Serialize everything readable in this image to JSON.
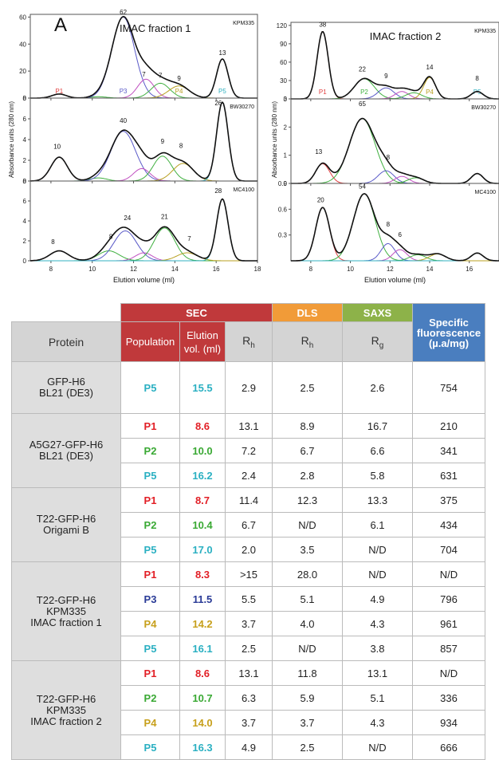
{
  "panelA": {
    "letter": "A",
    "xlabel": "Elution volume (ml)",
    "ylabel": "Absorbance units (280 nm)",
    "left_title": "IMAC fraction 1",
    "right_title": "IMAC fraction 2"
  },
  "chart_data": [
    {
      "type": "line",
      "title": "IMAC fraction 1",
      "strain": "KPM335",
      "xlim": [
        7,
        18
      ],
      "ylim": [
        0,
        62
      ],
      "yticks": [
        0,
        20,
        40,
        60
      ],
      "xticks": [
        8,
        10,
        12,
        14,
        16,
        18
      ],
      "peaks": [
        {
          "label": "P1",
          "x": 8.4,
          "y": 3,
          "color": "#e04040",
          "w": 0.35
        },
        {
          "label": "",
          "x": 10.3,
          "y": 1,
          "color": "#40b040",
          "w": 0.4
        },
        {
          "label": "P3",
          "x": 11.5,
          "y": 60,
          "color": "#5a5ac8",
          "w": 0.55
        },
        {
          "label": "",
          "x": 12.6,
          "y": 14,
          "color": "#c050c0",
          "w": 0.4
        },
        {
          "label": "",
          "x": 13.3,
          "y": 11,
          "color": "#40b040",
          "w": 0.45
        },
        {
          "label": "P4",
          "x": 14.2,
          "y": 9,
          "color": "#b8a020",
          "w": 0.5
        },
        {
          "label": "P5",
          "x": 16.3,
          "y": 29,
          "color": "#30b0c0",
          "w": 0.28
        }
      ],
      "peak_labels": [
        {
          "text": "62",
          "x": 11.5,
          "y": 62
        },
        {
          "text": "7",
          "x": 12.5,
          "y": 16
        },
        {
          "text": "7",
          "x": 13.3,
          "y": 15
        },
        {
          "text": "9",
          "x": 14.2,
          "y": 13
        },
        {
          "text": "13",
          "x": 16.3,
          "y": 32
        }
      ]
    },
    {
      "type": "line",
      "strain": "BW30270",
      "xlim": [
        7,
        18
      ],
      "ylim": [
        0,
        8
      ],
      "yticks": [
        0,
        2,
        4,
        6,
        8
      ],
      "xticks": [
        8,
        10,
        12,
        14,
        16,
        18
      ],
      "peaks": [
        {
          "label": "",
          "x": 8.4,
          "y": 2.3,
          "color": "#e04040",
          "w": 0.4
        },
        {
          "label": "",
          "x": 10.3,
          "y": 0.3,
          "color": "#40b040",
          "w": 0.4
        },
        {
          "label": "",
          "x": 11.5,
          "y": 4.8,
          "color": "#5a5ac8",
          "w": 0.6
        },
        {
          "label": "",
          "x": 12.4,
          "y": 1.2,
          "color": "#c050c0",
          "w": 0.4
        },
        {
          "label": "",
          "x": 13.4,
          "y": 2.4,
          "color": "#40b040",
          "w": 0.45
        },
        {
          "label": "",
          "x": 14.4,
          "y": 1.7,
          "color": "#b8a020",
          "w": 0.5
        },
        {
          "label": "",
          "x": 16.3,
          "y": 7.6,
          "color": "#30b0c0",
          "w": 0.28
        }
      ],
      "peak_labels": [
        {
          "text": "10",
          "x": 8.3,
          "y": 3.1
        },
        {
          "text": "40",
          "x": 11.5,
          "y": 5.6
        },
        {
          "text": "9",
          "x": 13.4,
          "y": 3.6
        },
        {
          "text": "8",
          "x": 14.3,
          "y": 3.2
        },
        {
          "text": "26",
          "x": 16.1,
          "y": 7.3
        }
      ]
    },
    {
      "type": "line",
      "strain": "MC4100",
      "xlim": [
        7,
        18
      ],
      "ylim": [
        0,
        8
      ],
      "yticks": [
        0,
        2,
        4,
        6,
        8
      ],
      "xticks": [
        8,
        10,
        12,
        14,
        16,
        18
      ],
      "peaks": [
        {
          "label": "",
          "x": 8.4,
          "y": 1.0,
          "color": "#e04040",
          "w": 0.45
        },
        {
          "label": "",
          "x": 10.8,
          "y": 1.0,
          "color": "#40b040",
          "w": 0.5
        },
        {
          "label": "",
          "x": 11.6,
          "y": 3.0,
          "color": "#5a5ac8",
          "w": 0.55
        },
        {
          "label": "",
          "x": 12.5,
          "y": 0.8,
          "color": "#c050c0",
          "w": 0.4
        },
        {
          "label": "",
          "x": 13.5,
          "y": 3.3,
          "color": "#40b040",
          "w": 0.5
        },
        {
          "label": "",
          "x": 14.6,
          "y": 0.8,
          "color": "#b8a020",
          "w": 0.5
        },
        {
          "label": "",
          "x": 16.3,
          "y": 6.2,
          "color": "#30b0c0",
          "w": 0.28
        }
      ],
      "peak_labels": [
        {
          "text": "8",
          "x": 8.1,
          "y": 1.7
        },
        {
          "text": "8",
          "x": 10.9,
          "y": 2.2
        },
        {
          "text": "24",
          "x": 11.7,
          "y": 4.1
        },
        {
          "text": "21",
          "x": 13.5,
          "y": 4.2
        },
        {
          "text": "7",
          "x": 14.7,
          "y": 2.0
        },
        {
          "text": "28",
          "x": 16.1,
          "y": 6.8
        }
      ],
      "xlabel": "Elution volume (ml)"
    },
    {
      "type": "line",
      "title": "IMAC fraction 2",
      "strain": "KPM335",
      "xlim": [
        7,
        17.5
      ],
      "ylim": [
        0,
        125
      ],
      "yticks": [
        0,
        30,
        60,
        90,
        120
      ],
      "xticks": [
        8,
        10,
        12,
        14,
        16
      ],
      "peaks": [
        {
          "label": "P1",
          "x": 8.6,
          "y": 110,
          "color": "#e04040",
          "w": 0.28
        },
        {
          "label": "P2",
          "x": 10.7,
          "y": 33,
          "color": "#40b040",
          "w": 0.5
        },
        {
          "label": "",
          "x": 11.8,
          "y": 18,
          "color": "#5a5ac8",
          "w": 0.4
        },
        {
          "label": "",
          "x": 12.6,
          "y": 12,
          "color": "#c050c0",
          "w": 0.35
        },
        {
          "label": "",
          "x": 13.2,
          "y": 10,
          "color": "#40b040",
          "w": 0.4
        },
        {
          "label": "P4",
          "x": 14.0,
          "y": 35,
          "color": "#b8a020",
          "w": 0.3
        },
        {
          "label": "P5",
          "x": 16.4,
          "y": 12,
          "color": "#30b0c0",
          "w": 0.3
        }
      ],
      "peak_labels": [
        {
          "text": "38",
          "x": 8.6,
          "y": 118
        },
        {
          "text": "22",
          "x": 10.6,
          "y": 45
        },
        {
          "text": "9",
          "x": 11.8,
          "y": 34
        },
        {
          "text": "14",
          "x": 14.0,
          "y": 48
        },
        {
          "text": "8",
          "x": 16.4,
          "y": 30
        }
      ]
    },
    {
      "type": "line",
      "strain": "BW30270",
      "xlim": [
        7,
        17.5
      ],
      "ylim": [
        0,
        3
      ],
      "yticks": [
        0,
        1,
        2,
        3
      ],
      "xticks": [
        8,
        10,
        12,
        14,
        16
      ],
      "peaks": [
        {
          "label": "",
          "x": 8.6,
          "y": 0.7,
          "color": "#e04040",
          "w": 0.35
        },
        {
          "label": "",
          "x": 10.6,
          "y": 2.3,
          "color": "#40b040",
          "w": 0.65
        },
        {
          "label": "",
          "x": 11.8,
          "y": 0.45,
          "color": "#5a5ac8",
          "w": 0.4
        },
        {
          "label": "",
          "x": 12.6,
          "y": 0.25,
          "color": "#c050c0",
          "w": 0.35
        },
        {
          "label": "",
          "x": 13.3,
          "y": 0.2,
          "color": "#40b040",
          "w": 0.4
        },
        {
          "label": "",
          "x": 16.4,
          "y": 0.35,
          "color": "#30b0c0",
          "w": 0.3
        }
      ],
      "peak_labels": [
        {
          "text": "13",
          "x": 8.4,
          "y": 1.05
        },
        {
          "text": "65",
          "x": 10.6,
          "y": 2.75
        },
        {
          "text": "8",
          "x": 11.9,
          "y": 0.85
        }
      ]
    },
    {
      "type": "line",
      "strain": "MC4100",
      "xlim": [
        7,
        17.5
      ],
      "ylim": [
        0,
        0.9
      ],
      "yticks": [
        0.3,
        0.6,
        0.9
      ],
      "xticks": [
        8,
        10,
        12,
        14,
        16
      ],
      "peaks": [
        {
          "label": "",
          "x": 8.6,
          "y": 0.62,
          "color": "#e04040",
          "w": 0.35
        },
        {
          "label": "",
          "x": 10.7,
          "y": 0.78,
          "color": "#40b040",
          "w": 0.55
        },
        {
          "label": "",
          "x": 11.9,
          "y": 0.2,
          "color": "#5a5ac8",
          "w": 0.35
        },
        {
          "label": "",
          "x": 12.5,
          "y": 0.13,
          "color": "#c050c0",
          "w": 0.35
        },
        {
          "label": "",
          "x": 13.4,
          "y": 0.07,
          "color": "#40b040",
          "w": 0.4
        },
        {
          "label": "",
          "x": 14.4,
          "y": 0.08,
          "color": "#b8a020",
          "w": 0.4
        },
        {
          "label": "",
          "x": 16.4,
          "y": 0.09,
          "color": "#30b0c0",
          "w": 0.3
        }
      ],
      "peak_labels": [
        {
          "text": "20",
          "x": 8.5,
          "y": 0.68
        },
        {
          "text": "54",
          "x": 10.6,
          "y": 0.84
        },
        {
          "text": "8",
          "x": 11.9,
          "y": 0.4
        },
        {
          "text": "6",
          "x": 12.5,
          "y": 0.28
        }
      ],
      "xlabel": "Elution volume (ml)"
    }
  ],
  "panelB": {
    "letter": "B",
    "groups": {
      "sec": "SEC",
      "dls": "DLS",
      "saxs": "SAXS",
      "spec": "Specific fluorescence (µ.a/mg)"
    },
    "cols": {
      "protein": "Protein",
      "population": "Population",
      "elution": "Elution vol. (ml)",
      "rh1": "R",
      "rh_sub": "h",
      "rh2": "R",
      "rg": "R",
      "rg_sub": "g"
    },
    "groups_rows": [
      {
        "protein": "GFP-H6\nBL21 (DE3)",
        "rows": [
          {
            "pop": "P5",
            "elu": "15.5",
            "rh": "2.9",
            "dls": "2.5",
            "saxs": "2.6",
            "fl": "754",
            "color": "#2bb0c2"
          }
        ]
      },
      {
        "protein": "A5G27-GFP-H6\nBL21 (DE3)",
        "rows": [
          {
            "pop": "P1",
            "elu": "8.6",
            "rh": "13.1",
            "dls": "8.9",
            "saxs": "16.7",
            "fl": "210",
            "color": "#e21f26"
          },
          {
            "pop": "P2",
            "elu": "10.0",
            "rh": "7.2",
            "dls": "6.7",
            "saxs": "6.6",
            "fl": "341",
            "color": "#3aa934"
          },
          {
            "pop": "P5",
            "elu": "16.2",
            "rh": "2.4",
            "dls": "2.8",
            "saxs": "5.8",
            "fl": "631",
            "color": "#2bb0c2"
          }
        ]
      },
      {
        "protein": "T22-GFP-H6\nOrigami B",
        "rows": [
          {
            "pop": "P1",
            "elu": "8.7",
            "rh": "11.4",
            "dls": "12.3",
            "saxs": "13.3",
            "fl": "375",
            "color": "#e21f26"
          },
          {
            "pop": "P2",
            "elu": "10.4",
            "rh": "6.7",
            "dls": "N/D",
            "saxs": "6.1",
            "fl": "434",
            "color": "#3aa934"
          },
          {
            "pop": "P5",
            "elu": "17.0",
            "rh": "2.0",
            "dls": "3.5",
            "saxs": "N/D",
            "fl": "704",
            "color": "#2bb0c2"
          }
        ]
      },
      {
        "protein": "T22-GFP-H6\nKPM335\nIMAC fraction 1",
        "rows": [
          {
            "pop": "P1",
            "elu": "8.3",
            "rh": ">15",
            "dls": "28.0",
            "saxs": "N/D",
            "fl": "N/D",
            "color": "#e21f26"
          },
          {
            "pop": "P3",
            "elu": "11.5",
            "rh": "5.5",
            "dls": "5.1",
            "saxs": "4.9",
            "fl": "796",
            "color": "#2a3b97"
          },
          {
            "pop": "P4",
            "elu": "14.2",
            "rh": "3.7",
            "dls": "4.0",
            "saxs": "4.3",
            "fl": "961",
            "color": "#c7a01c"
          },
          {
            "pop": "P5",
            "elu": "16.1",
            "rh": "2.5",
            "dls": "N/D",
            "saxs": "3.8",
            "fl": "857",
            "color": "#2bb0c2"
          }
        ]
      },
      {
        "protein": "T22-GFP-H6\nKPM335\nIMAC fraction 2",
        "rows": [
          {
            "pop": "P1",
            "elu": "8.6",
            "rh": "13.1",
            "dls": "11.8",
            "saxs": "13.1",
            "fl": "N/D",
            "color": "#e21f26"
          },
          {
            "pop": "P2",
            "elu": "10.7",
            "rh": "6.3",
            "dls": "5.9",
            "saxs": "5.1",
            "fl": "336",
            "color": "#3aa934"
          },
          {
            "pop": "P4",
            "elu": "14.0",
            "rh": "3.7",
            "dls": "3.7",
            "saxs": "4.3",
            "fl": "934",
            "color": "#c7a01c"
          },
          {
            "pop": "P5",
            "elu": "16.3",
            "rh": "4.9",
            "dls": "2.5",
            "saxs": "N/D",
            "fl": "666",
            "color": "#2bb0c2"
          }
        ]
      }
    ]
  }
}
